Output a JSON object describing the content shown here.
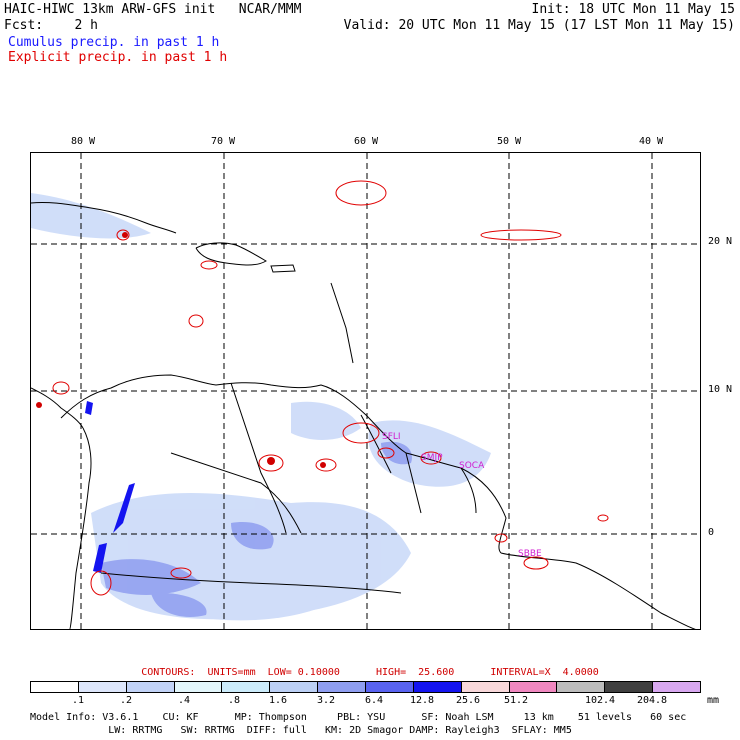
{
  "header": {
    "title": "HAIC-HIWC 13km ARW-GFS init   NCAR/MMM",
    "fcst": "Fcst:    2 h",
    "init": "Init: 18 UTC Mon 11 May 15",
    "valid": "Valid: 20 UTC Mon 11 May 15 (17 LST Mon 11 May 15)",
    "cumulus": "Cumulus precip. in past 1 h",
    "explicit": "Explicit precip. in past 1 h"
  },
  "map": {
    "lon_labels": [
      "80 W",
      "70 W",
      "60 W",
      "50 W",
      "40 W"
    ],
    "lat_labels": [
      "20 N",
      "10 N",
      "0"
    ],
    "station_labels": [
      "SFLI",
      "SMJP",
      "SOCA",
      "SBBE"
    ]
  },
  "contours": "CONTOURS:  UNITS=mm  LOW= 0.10000      HIGH=  25.600      INTERVAL=X  4.0000",
  "legend": {
    "ticks": [
      ".1",
      ".2",
      ".4",
      ".8",
      "1.6",
      "3.2",
      "6.4",
      "12.8",
      "25.6",
      "51.2",
      "102.4",
      "204.8"
    ],
    "unit": "mm",
    "colors": [
      "#ffffff",
      "#dde6fb",
      "#c2d3f7",
      "#e3f6fb",
      "#ccecfb",
      "#bcd0f5",
      "#8f9ef0",
      "#5963f0",
      "#1414f0",
      "#f8d8da",
      "#f088c0",
      "#bcbcbc",
      "#404040",
      "#d8a8f0"
    ]
  },
  "model_info": {
    "line1": "Model Info: V3.6.1    CU: KF      MP: Thompson     PBL: YSU      SF: Noah LSM     13 km    51 levels   60 sec",
    "line2": "             LW: RRTMG   SW: RRTMG  DIFF: full   KM: 2D Smagor DAMP: Rayleigh3  SFLAY: MM5"
  }
}
